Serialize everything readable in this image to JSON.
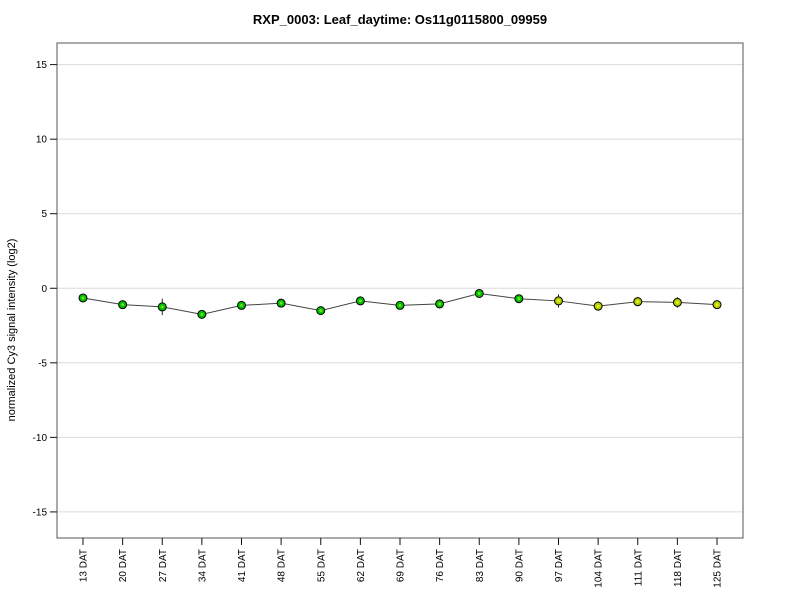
{
  "chart_data": {
    "type": "line",
    "title": "RXP_0003: Leaf_daytime: Os11g0115800_09959",
    "ylabel": "normalized Cy3 signal intensity (log2)",
    "xlabel": "",
    "categories": [
      "13 DAT",
      "20 DAT",
      "27 DAT",
      "34 DAT",
      "41 DAT",
      "48 DAT",
      "55 DAT",
      "62 DAT",
      "69 DAT",
      "76 DAT",
      "83 DAT",
      "90 DAT",
      "97 DAT",
      "104 DAT",
      "111 DAT",
      "118 DAT",
      "125 DAT"
    ],
    "series": [
      {
        "name": "normalized Cy3 signal intensity (log2)",
        "values": [
          -0.65,
          -1.1,
          -1.25,
          -1.75,
          -1.15,
          -1.0,
          -1.5,
          -0.85,
          -1.15,
          -1.05,
          -0.35,
          -0.7,
          -0.85,
          -1.2,
          -0.9,
          -0.95,
          -1.1
        ],
        "errors": [
          0.15,
          0.2,
          0.55,
          0.1,
          0.15,
          0.1,
          0.15,
          0.1,
          0.15,
          0.3,
          0.1,
          0.15,
          0.45,
          0.3,
          0.3,
          0.35,
          0.12
        ],
        "point_colors": [
          "green",
          "green",
          "green",
          "green",
          "green",
          "green",
          "green",
          "green",
          "green",
          "green",
          "green",
          "green",
          "yellow",
          "yellow",
          "yellow",
          "yellow",
          "yellow"
        ]
      }
    ],
    "ylim": [
      -16.75,
      16.45
    ],
    "yticks": [
      -15,
      -10,
      -5,
      0,
      5,
      10,
      15
    ],
    "grid": "horizontal-only",
    "legend": "none",
    "colors": {
      "green": "#00C000",
      "green_highlight": "#7CE02C",
      "yellow": "#B5CE00",
      "yellow_highlight": "#E2F234",
      "line": "#444444",
      "error_bar": "#222222",
      "point_outline": "#000000",
      "grid": "#DCDCDC",
      "box": "#555555",
      "axis_tick": "#111111"
    }
  }
}
